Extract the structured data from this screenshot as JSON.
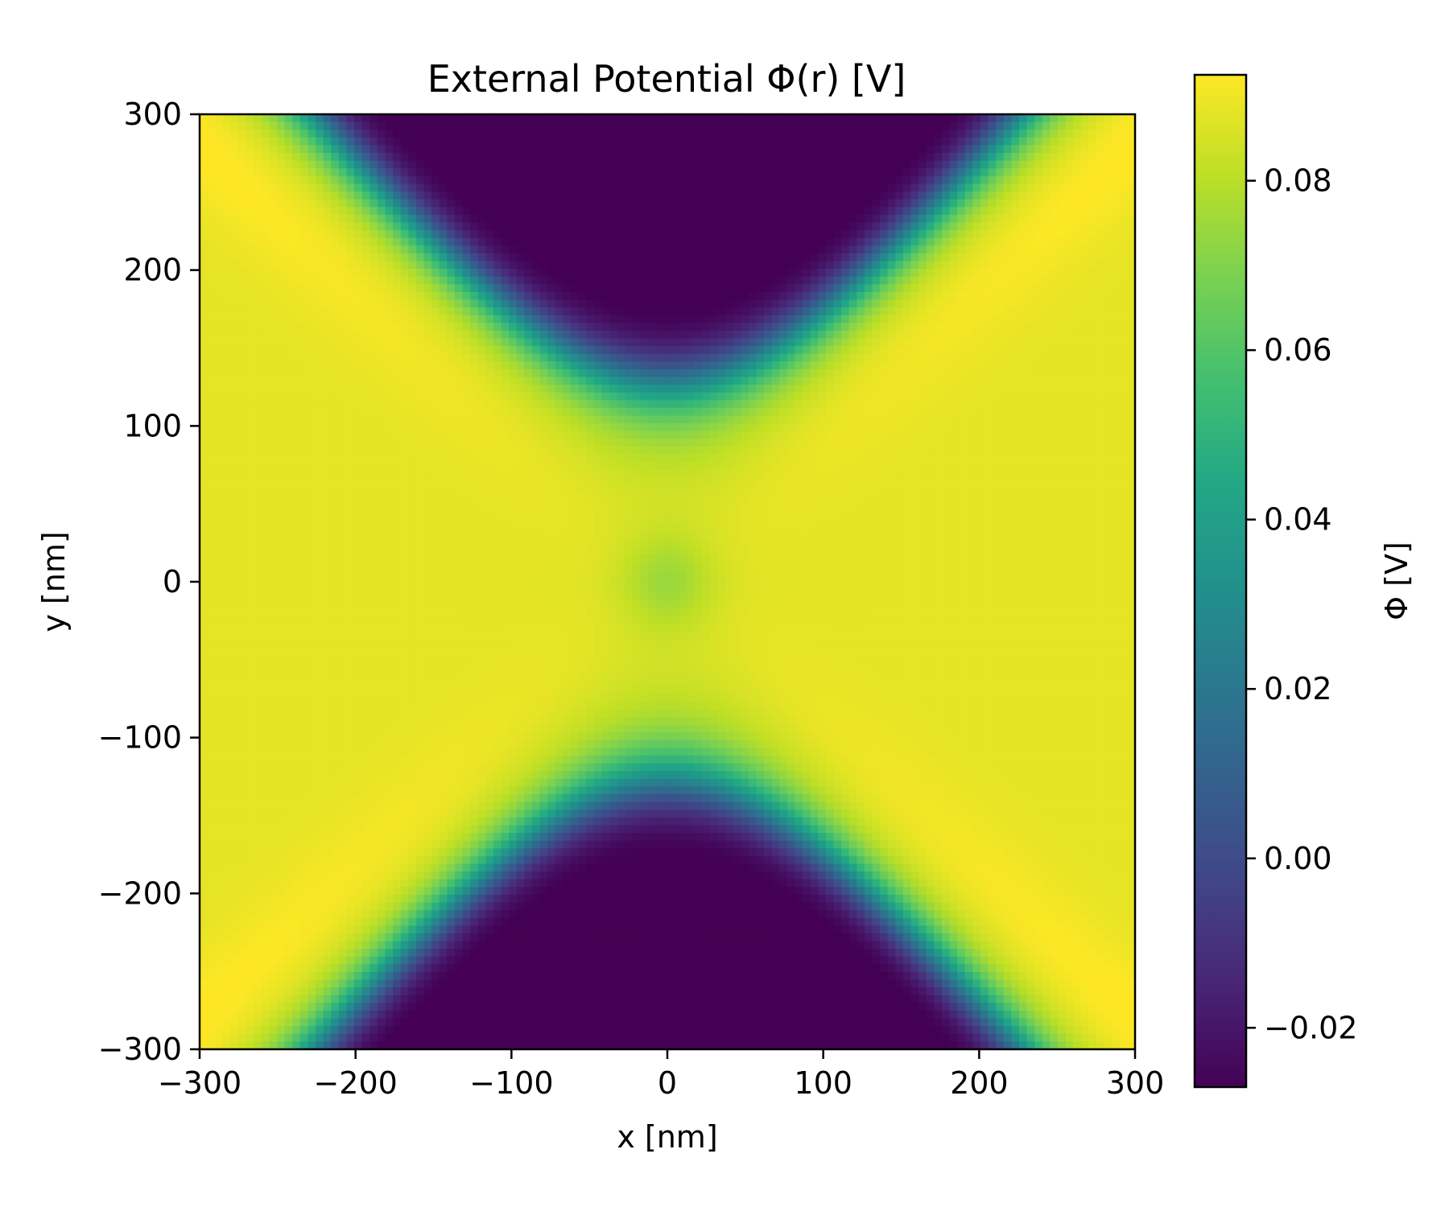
{
  "chart_data": {
    "type": "heatmap",
    "title": "External Potential Φ(r) [V]",
    "xlabel": "x [nm]",
    "ylabel": "y [nm]",
    "xlim": [
      -300,
      300
    ],
    "ylim": [
      -300,
      300
    ],
    "x_ticks": [
      -300,
      -200,
      -100,
      0,
      100,
      200,
      300
    ],
    "x_tick_labels": [
      "−300",
      "−200",
      "−100",
      "0",
      "100",
      "200",
      "300"
    ],
    "y_ticks": [
      -300,
      -200,
      -100,
      0,
      100,
      200,
      300
    ],
    "y_tick_labels": [
      "−300",
      "−200",
      "−100",
      "0",
      "100",
      "200",
      "300"
    ],
    "grid": false,
    "colormap": "viridis",
    "colorbar": {
      "label": "Φ [V]",
      "range": [
        -0.027,
        0.0925
      ],
      "ticks": [
        -0.02,
        0.0,
        0.02,
        0.04,
        0.06,
        0.08
      ],
      "tick_labels": [
        "−0.02",
        "0.00",
        "0.02",
        "0.04",
        "0.06",
        "0.08"
      ]
    },
    "grid_resolution": 121,
    "field_description_values": {
      "center_value": 0.075,
      "ridge_max_value": 0.092,
      "well_min_value": -0.027
    }
  }
}
